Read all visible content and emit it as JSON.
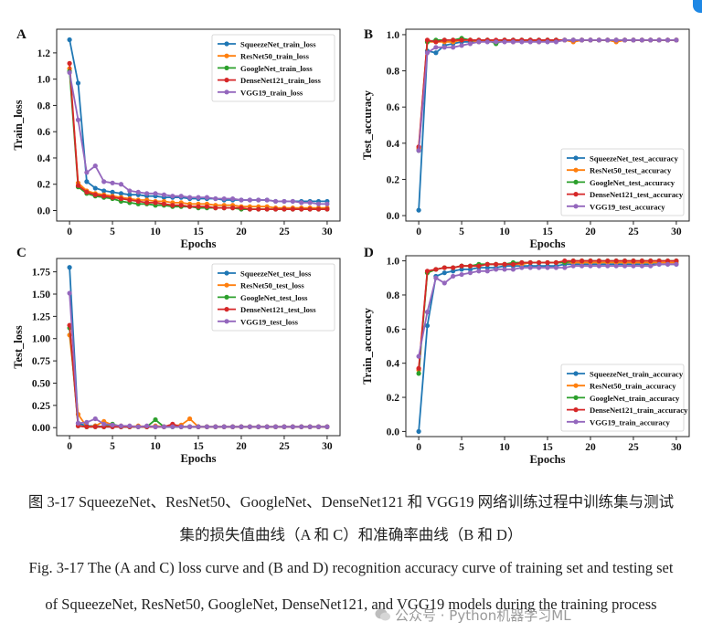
{
  "captions": {
    "cn_line1": "图 3-17 SqueezeNet、ResNet50、GoogleNet、DenseNet121 和 VGG19 网络训练过程中训练集与测试",
    "cn_line2": "集的损失值曲线（A 和 C）和准确率曲线（B 和 D）",
    "en_line1": "Fig. 3-17 The (A and C) loss curve and (B and D) recognition accuracy curve of training set and testing set",
    "en_line2": "of SqueezeNet, ResNet50, GoogleNet, DenseNet121, and VGG19 models during the training process"
  },
  "watermark": "公众号 · Python机器学习ML",
  "colors": {
    "SqueezeNet": "#1f77b4",
    "ResNet50": "#ff7f0e",
    "GoogleNet": "#2ca02c",
    "DenseNet121": "#d62728",
    "VGG19": "#9467bd"
  },
  "chart_data": [
    {
      "panel": "A",
      "type": "line",
      "xlabel": "Epochs",
      "ylabel": "Train_loss",
      "xlim": [
        -1.5,
        31.5
      ],
      "ylim": [
        -0.08,
        1.38
      ],
      "xticks": [
        0,
        5,
        10,
        15,
        20,
        25,
        30
      ],
      "yticks": [
        0.0,
        0.2,
        0.4,
        0.6,
        0.8,
        1.0,
        1.2
      ],
      "ytick_decimals": 1,
      "legend_position": "top-right",
      "x": [
        0,
        1,
        2,
        3,
        4,
        5,
        6,
        7,
        8,
        9,
        10,
        11,
        12,
        13,
        14,
        15,
        16,
        17,
        18,
        19,
        20,
        21,
        22,
        23,
        24,
        25,
        26,
        27,
        28,
        29,
        30
      ],
      "series": [
        {
          "name": "SqueezeNet_train_loss",
          "key": "SqueezeNet",
          "values": [
            1.3,
            0.97,
            0.22,
            0.17,
            0.15,
            0.14,
            0.13,
            0.12,
            0.12,
            0.11,
            0.11,
            0.1,
            0.1,
            0.1,
            0.09,
            0.09,
            0.09,
            0.09,
            0.08,
            0.08,
            0.08,
            0.08,
            0.08,
            0.08,
            0.07,
            0.07,
            0.07,
            0.07,
            0.07,
            0.07,
            0.07
          ]
        },
        {
          "name": "ResNet50_train_loss",
          "key": "ResNet50",
          "values": [
            1.08,
            0.21,
            0.15,
            0.13,
            0.12,
            0.11,
            0.1,
            0.09,
            0.08,
            0.08,
            0.07,
            0.07,
            0.06,
            0.06,
            0.05,
            0.05,
            0.05,
            0.04,
            0.04,
            0.04,
            0.03,
            0.03,
            0.03,
            0.03,
            0.02,
            0.02,
            0.02,
            0.02,
            0.02,
            0.02,
            0.02
          ]
        },
        {
          "name": "GoogleNet_train_loss",
          "key": "GoogleNet",
          "values": [
            1.06,
            0.18,
            0.13,
            0.11,
            0.1,
            0.09,
            0.07,
            0.06,
            0.05,
            0.05,
            0.04,
            0.04,
            0.03,
            0.03,
            0.03,
            0.02,
            0.02,
            0.02,
            0.02,
            0.02,
            0.01,
            0.01,
            0.01,
            0.01,
            0.01,
            0.01,
            0.01,
            0.01,
            0.01,
            0.01,
            0.01
          ]
        },
        {
          "name": "DenseNet121_train_loss",
          "key": "DenseNet121",
          "values": [
            1.12,
            0.19,
            0.14,
            0.12,
            0.11,
            0.1,
            0.09,
            0.08,
            0.07,
            0.06,
            0.06,
            0.05,
            0.04,
            0.04,
            0.03,
            0.03,
            0.03,
            0.02,
            0.02,
            0.02,
            0.02,
            0.01,
            0.01,
            0.01,
            0.01,
            0.01,
            0.01,
            0.01,
            0.01,
            0.01,
            0.01
          ]
        },
        {
          "name": "VGG19_train_loss",
          "key": "VGG19",
          "values": [
            1.05,
            0.69,
            0.29,
            0.34,
            0.22,
            0.21,
            0.2,
            0.15,
            0.14,
            0.13,
            0.13,
            0.12,
            0.11,
            0.11,
            0.1,
            0.1,
            0.1,
            0.09,
            0.09,
            0.09,
            0.08,
            0.08,
            0.08,
            0.08,
            0.07,
            0.07,
            0.07,
            0.06,
            0.06,
            0.05,
            0.05
          ]
        }
      ]
    },
    {
      "panel": "B",
      "type": "line",
      "xlabel": "Epochs",
      "ylabel": "Test_accuracy",
      "xlim": [
        -1.5,
        31.5
      ],
      "ylim": [
        -0.03,
        1.03
      ],
      "xticks": [
        0,
        5,
        10,
        15,
        20,
        25,
        30
      ],
      "yticks": [
        0.0,
        0.2,
        0.4,
        0.6,
        0.8,
        1.0
      ],
      "ytick_decimals": 1,
      "legend_position": "bottom-right",
      "x": [
        0,
        1,
        2,
        3,
        4,
        5,
        6,
        7,
        8,
        9,
        10,
        11,
        12,
        13,
        14,
        15,
        16,
        17,
        18,
        19,
        20,
        21,
        22,
        23,
        24,
        25,
        26,
        27,
        28,
        29,
        30
      ],
      "series": [
        {
          "name": "SqueezeNet_test_accuracy",
          "key": "SqueezeNet",
          "values": [
            0.03,
            0.91,
            0.9,
            0.94,
            0.95,
            0.96,
            0.96,
            0.96,
            0.97,
            0.96,
            0.97,
            0.97,
            0.97,
            0.97,
            0.97,
            0.97,
            0.97,
            0.97,
            0.97,
            0.97,
            0.97,
            0.97,
            0.97,
            0.97,
            0.97,
            0.97,
            0.97,
            0.97,
            0.97,
            0.97,
            0.97
          ]
        },
        {
          "name": "ResNet50_test_accuracy",
          "key": "ResNet50",
          "values": [
            0.37,
            0.96,
            0.96,
            0.96,
            0.96,
            0.97,
            0.97,
            0.96,
            0.97,
            0.96,
            0.97,
            0.96,
            0.97,
            0.97,
            0.96,
            0.97,
            0.97,
            0.97,
            0.96,
            0.97,
            0.97,
            0.97,
            0.97,
            0.96,
            0.97,
            0.97,
            0.97,
            0.97,
            0.97,
            0.97,
            0.97
          ]
        },
        {
          "name": "GoogleNet_test_accuracy",
          "key": "GoogleNet",
          "values": [
            0.36,
            0.96,
            0.97,
            0.97,
            0.97,
            0.98,
            0.97,
            0.97,
            0.97,
            0.95,
            0.97,
            0.97,
            0.97,
            0.97,
            0.97,
            0.97,
            0.97,
            0.97,
            0.97,
            0.97,
            0.97,
            0.97,
            0.97,
            0.97,
            0.97,
            0.97,
            0.97,
            0.97,
            0.97,
            0.97,
            0.97
          ]
        },
        {
          "name": "DenseNet121_test_accuracy",
          "key": "DenseNet121",
          "values": [
            0.38,
            0.97,
            0.96,
            0.97,
            0.97,
            0.97,
            0.97,
            0.97,
            0.97,
            0.97,
            0.97,
            0.97,
            0.97,
            0.97,
            0.97,
            0.97,
            0.97,
            0.97,
            0.97,
            0.97,
            0.97,
            0.97,
            0.97,
            0.97,
            0.97,
            0.97,
            0.97,
            0.97,
            0.97,
            0.97,
            0.97
          ]
        },
        {
          "name": "VGG19_test_accuracy",
          "key": "VGG19",
          "values": [
            0.36,
            0.9,
            0.93,
            0.93,
            0.93,
            0.94,
            0.95,
            0.96,
            0.96,
            0.96,
            0.96,
            0.96,
            0.96,
            0.96,
            0.96,
            0.96,
            0.96,
            0.97,
            0.97,
            0.97,
            0.97,
            0.97,
            0.97,
            0.97,
            0.97,
            0.97,
            0.97,
            0.97,
            0.97,
            0.97,
            0.97
          ]
        }
      ]
    },
    {
      "panel": "C",
      "type": "line",
      "xlabel": "Epochs",
      "ylabel": "Test_loss",
      "xlim": [
        -1.5,
        31.5
      ],
      "ylim": [
        -0.09,
        1.9
      ],
      "xticks": [
        0,
        5,
        10,
        15,
        20,
        25,
        30
      ],
      "yticks": [
        0.0,
        0.25,
        0.5,
        0.75,
        1.0,
        1.25,
        1.5,
        1.75
      ],
      "ytick_decimals": 2,
      "legend_position": "top-right",
      "x": [
        0,
        1,
        2,
        3,
        4,
        5,
        6,
        7,
        8,
        9,
        10,
        11,
        12,
        13,
        14,
        15,
        16,
        17,
        18,
        19,
        20,
        21,
        22,
        23,
        24,
        25,
        26,
        27,
        28,
        29,
        30
      ],
      "series": [
        {
          "name": "SqueezeNet_test_loss",
          "key": "SqueezeNet",
          "values": [
            1.8,
            0.05,
            0.02,
            0.02,
            0.01,
            0.01,
            0.01,
            0.01,
            0.01,
            0.01,
            0.01,
            0.01,
            0.01,
            0.01,
            0.01,
            0.01,
            0.01,
            0.01,
            0.01,
            0.01,
            0.01,
            0.01,
            0.01,
            0.01,
            0.01,
            0.01,
            0.01,
            0.01,
            0.01,
            0.01,
            0.01
          ]
        },
        {
          "name": "ResNet50_test_loss",
          "key": "ResNet50",
          "values": [
            1.04,
            0.15,
            0.01,
            0.02,
            0.07,
            0.03,
            0.02,
            0.01,
            0.02,
            0.01,
            0.02,
            0.01,
            0.02,
            0.03,
            0.1,
            0.01,
            0.01,
            0.01,
            0.01,
            0.01,
            0.01,
            0.01,
            0.01,
            0.01,
            0.01,
            0.01,
            0.01,
            0.01,
            0.01,
            0.01,
            0.01
          ]
        },
        {
          "name": "GoogleNet_test_loss",
          "key": "GoogleNet",
          "values": [
            1.12,
            0.02,
            0.01,
            0.01,
            0.01,
            0.04,
            0.01,
            0.01,
            0.01,
            0.01,
            0.09,
            0.01,
            0.01,
            0.01,
            0.01,
            0.01,
            0.01,
            0.01,
            0.01,
            0.01,
            0.01,
            0.01,
            0.01,
            0.01,
            0.01,
            0.01,
            0.01,
            0.01,
            0.01,
            0.01,
            0.01
          ]
        },
        {
          "name": "DenseNet121_test_loss",
          "key": "DenseNet121",
          "values": [
            1.15,
            0.02,
            0.01,
            0.01,
            0.01,
            0.01,
            0.01,
            0.01,
            0.01,
            0.01,
            0.01,
            0.01,
            0.04,
            0.01,
            0.01,
            0.01,
            0.01,
            0.01,
            0.01,
            0.01,
            0.01,
            0.01,
            0.01,
            0.01,
            0.01,
            0.01,
            0.01,
            0.01,
            0.01,
            0.01,
            0.01
          ]
        },
        {
          "name": "VGG19_test_loss",
          "key": "VGG19",
          "values": [
            1.51,
            0.05,
            0.06,
            0.1,
            0.04,
            0.03,
            0.02,
            0.02,
            0.01,
            0.02,
            0.01,
            0.01,
            0.01,
            0.01,
            0.01,
            0.01,
            0.01,
            0.01,
            0.01,
            0.01,
            0.01,
            0.01,
            0.01,
            0.01,
            0.01,
            0.01,
            0.01,
            0.01,
            0.01,
            0.01,
            0.01
          ]
        }
      ]
    },
    {
      "panel": "D",
      "type": "line",
      "xlabel": "Epochs",
      "ylabel": "Train_accuracy",
      "xlim": [
        -1.5,
        31.5
      ],
      "ylim": [
        -0.03,
        1.03
      ],
      "xticks": [
        0,
        5,
        10,
        15,
        20,
        25,
        30
      ],
      "yticks": [
        0.0,
        0.2,
        0.4,
        0.6,
        0.8,
        1.0
      ],
      "ytick_decimals": 1,
      "legend_position": "bottom-right",
      "x": [
        0,
        1,
        2,
        3,
        4,
        5,
        6,
        7,
        8,
        9,
        10,
        11,
        12,
        13,
        14,
        15,
        16,
        17,
        18,
        19,
        20,
        21,
        22,
        23,
        24,
        25,
        26,
        27,
        28,
        29,
        30
      ],
      "series": [
        {
          "name": "SqueezeNet_train_accuracy",
          "key": "SqueezeNet",
          "values": [
            0.0,
            0.62,
            0.91,
            0.93,
            0.94,
            0.95,
            0.95,
            0.96,
            0.96,
            0.96,
            0.97,
            0.97,
            0.97,
            0.97,
            0.97,
            0.97,
            0.97,
            0.98,
            0.98,
            0.98,
            0.98,
            0.98,
            0.98,
            0.98,
            0.98,
            0.98,
            0.98,
            0.98,
            0.98,
            0.98,
            0.98
          ]
        },
        {
          "name": "ResNet50_train_accuracy",
          "key": "ResNet50",
          "values": [
            0.36,
            0.93,
            0.95,
            0.96,
            0.96,
            0.97,
            0.97,
            0.97,
            0.98,
            0.98,
            0.98,
            0.98,
            0.98,
            0.99,
            0.99,
            0.99,
            0.99,
            0.99,
            0.99,
            0.99,
            0.99,
            0.99,
            0.99,
            0.99,
            0.99,
            0.99,
            0.99,
            0.99,
            0.99,
            0.99,
            0.99
          ]
        },
        {
          "name": "GoogleNet_train_accuracy",
          "key": "GoogleNet",
          "values": [
            0.34,
            0.93,
            0.95,
            0.96,
            0.96,
            0.97,
            0.97,
            0.98,
            0.98,
            0.98,
            0.98,
            0.99,
            0.99,
            0.99,
            0.99,
            0.99,
            0.99,
            0.99,
            1.0,
            1.0,
            1.0,
            1.0,
            1.0,
            1.0,
            1.0,
            1.0,
            1.0,
            1.0,
            1.0,
            1.0,
            1.0
          ]
        },
        {
          "name": "DenseNet121_train_accuracy",
          "key": "DenseNet121",
          "values": [
            0.37,
            0.94,
            0.95,
            0.96,
            0.96,
            0.97,
            0.97,
            0.97,
            0.98,
            0.98,
            0.98,
            0.98,
            0.99,
            0.99,
            0.99,
            0.99,
            0.99,
            1.0,
            1.0,
            1.0,
            1.0,
            1.0,
            1.0,
            1.0,
            1.0,
            1.0,
            1.0,
            1.0,
            1.0,
            1.0,
            1.0
          ]
        },
        {
          "name": "VGG19_train_accuracy",
          "key": "VGG19",
          "values": [
            0.44,
            0.7,
            0.9,
            0.87,
            0.91,
            0.92,
            0.93,
            0.94,
            0.94,
            0.95,
            0.95,
            0.95,
            0.96,
            0.96,
            0.96,
            0.96,
            0.96,
            0.96,
            0.97,
            0.97,
            0.97,
            0.97,
            0.97,
            0.97,
            0.97,
            0.97,
            0.97,
            0.97,
            0.98,
            0.98,
            0.98
          ]
        }
      ]
    }
  ]
}
